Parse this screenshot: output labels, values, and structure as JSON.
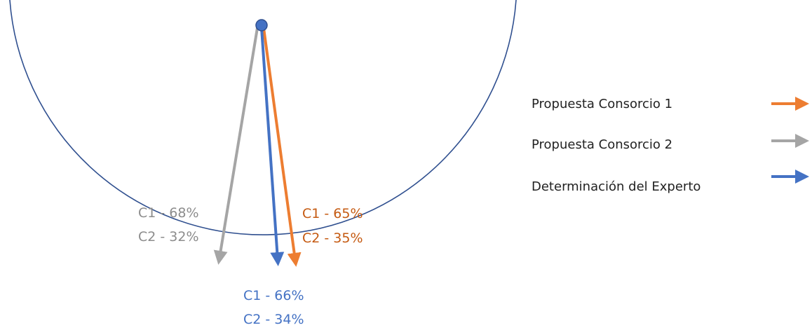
{
  "colors": {
    "circle": "#2f4f8f",
    "consorcio1": "#ed7d31",
    "consorcio2": "#a5a5a5",
    "experto": "#4472c4"
  },
  "labels": {
    "consorcio2": {
      "c1": "C1 - 68%",
      "c2": "C2 - 32%"
    },
    "consorcio1": {
      "c1": "C1 - 65%",
      "c2": "C2 - 35%"
    },
    "experto": {
      "c1": "C1 - 66%",
      "c2": "C2 - 34%"
    }
  },
  "legend": {
    "items": [
      {
        "label": "Propuesta Consorcio 1",
        "color_key": "consorcio1"
      },
      {
        "label": "Propuesta Consorcio 2",
        "color_key": "consorcio2"
      },
      {
        "label": "Determinación del Experto",
        "color_key": "experto"
      }
    ]
  }
}
